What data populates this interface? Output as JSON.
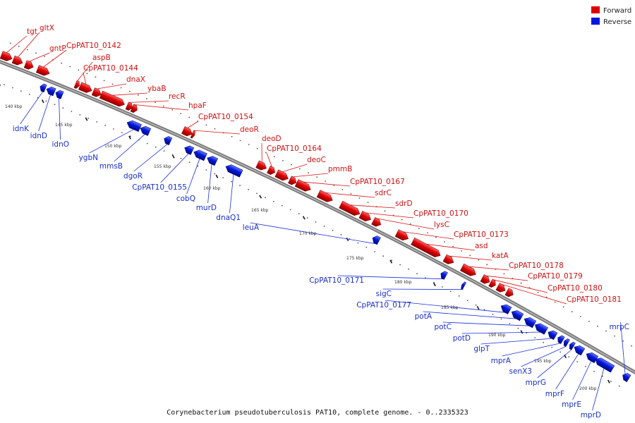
{
  "caption": "Corynebacterium pseudotuberculosis PAT10, complete genome. - 0..2335323",
  "legend": {
    "forward_label": "Forward",
    "reverse_label": "Reverse",
    "forward_color": "#dd0000",
    "reverse_color": "#0018dd"
  },
  "kbp_ticks": [
    "140 kbp",
    "145 kbp",
    "150 kbp",
    "155 kbp",
    "160 kbp",
    "165 kbp",
    "170 kbp",
    "175 kbp",
    "180 kbp",
    "185 kbp",
    "190 kbp",
    "195 kbp",
    "200 kbp"
  ],
  "forward_genes": [
    "tgt",
    "gltX",
    "gntP",
    "CpPAT10_0142",
    "aspB",
    "CpPAT10_0144",
    "dnaX",
    "ybaB",
    "recR",
    "hpaF",
    "CpPAT10_0154",
    "deoR",
    "deoD",
    "CpPAT10_0164",
    "deoC",
    "pmmB",
    "CpPAT10_0167",
    "sdrC",
    "sdrD",
    "CpPAT10_0170",
    "lysC",
    "CpPAT10_0173",
    "asd",
    "katA",
    "CpPAT10_0178",
    "CpPAT10_0179",
    "CpPAT10_0180",
    "CpPAT10_0181"
  ],
  "reverse_genes": [
    "idnK",
    "idnD",
    "idnO",
    "ygbN",
    "mmsB",
    "dgoR",
    "CpPAT10_0155",
    "cobQ",
    "murD",
    "dnaQ1",
    "leuA",
    "CpPAT10_0171",
    "sigC",
    "CpPAT10_0177",
    "potA",
    "potC",
    "potD",
    "glpT",
    "mprA",
    "senX3",
    "mprG",
    "mprF",
    "mprE",
    "mprD",
    "mrpC"
  ]
}
